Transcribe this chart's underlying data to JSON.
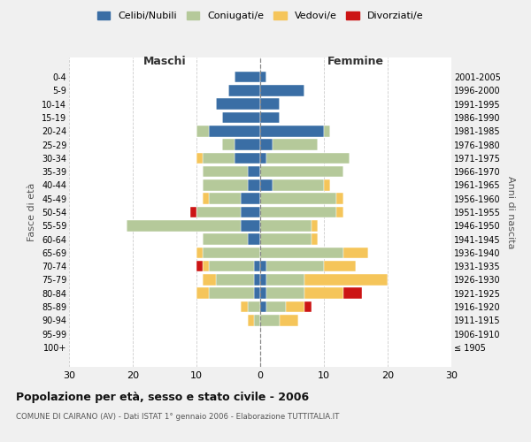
{
  "age_groups": [
    "100+",
    "95-99",
    "90-94",
    "85-89",
    "80-84",
    "75-79",
    "70-74",
    "65-69",
    "60-64",
    "55-59",
    "50-54",
    "45-49",
    "40-44",
    "35-39",
    "30-34",
    "25-29",
    "20-24",
    "15-19",
    "10-14",
    "5-9",
    "0-4"
  ],
  "birth_years": [
    "≤ 1905",
    "1906-1910",
    "1911-1915",
    "1916-1920",
    "1921-1925",
    "1926-1930",
    "1931-1935",
    "1936-1940",
    "1941-1945",
    "1946-1950",
    "1951-1955",
    "1956-1960",
    "1961-1965",
    "1966-1970",
    "1971-1975",
    "1976-1980",
    "1981-1985",
    "1986-1990",
    "1991-1995",
    "1996-2000",
    "2001-2005"
  ],
  "colors": {
    "celibi": "#3a6ea5",
    "coniugati": "#b5c99a",
    "vedovi": "#f5c55a",
    "divorziati": "#cc1414"
  },
  "maschi": {
    "celibi": [
      0,
      0,
      0,
      0,
      1,
      1,
      1,
      0,
      2,
      3,
      3,
      3,
      2,
      2,
      4,
      4,
      8,
      6,
      7,
      5,
      4
    ],
    "coniugati": [
      0,
      0,
      1,
      2,
      7,
      6,
      7,
      9,
      7,
      18,
      7,
      5,
      7,
      7,
      5,
      2,
      2,
      0,
      0,
      0,
      0
    ],
    "vedovi": [
      0,
      0,
      1,
      1,
      2,
      2,
      1,
      1,
      0,
      0,
      0,
      1,
      0,
      0,
      1,
      0,
      0,
      0,
      0,
      0,
      0
    ],
    "divorziati": [
      0,
      0,
      0,
      0,
      0,
      0,
      1,
      0,
      0,
      0,
      1,
      0,
      0,
      0,
      0,
      0,
      0,
      0,
      0,
      0,
      0
    ]
  },
  "femmine": {
    "celibi": [
      0,
      0,
      0,
      1,
      1,
      1,
      1,
      0,
      0,
      0,
      0,
      0,
      2,
      0,
      1,
      2,
      10,
      3,
      3,
      7,
      1
    ],
    "coniugati": [
      0,
      0,
      3,
      3,
      6,
      6,
      9,
      13,
      8,
      8,
      12,
      12,
      8,
      13,
      13,
      7,
      1,
      0,
      0,
      0,
      0
    ],
    "vedovi": [
      0,
      0,
      3,
      3,
      6,
      13,
      5,
      4,
      1,
      1,
      1,
      1,
      1,
      0,
      0,
      0,
      0,
      0,
      0,
      0,
      0
    ],
    "divorziati": [
      0,
      0,
      0,
      1,
      3,
      0,
      0,
      0,
      0,
      0,
      0,
      0,
      0,
      0,
      0,
      0,
      0,
      0,
      0,
      0,
      0
    ]
  },
  "title": "Popolazione per età, sesso e stato civile - 2006",
  "subtitle": "COMUNE DI CAIRANO (AV) - Dati ISTAT 1° gennaio 2006 - Elaborazione TUTTITALIA.IT",
  "xlabel_left": "Maschi",
  "xlabel_right": "Femmine",
  "ylabel_left": "Fasce di età",
  "ylabel_right": "Anni di nascita",
  "xlim": 30,
  "background_color": "#f0f0f0",
  "plot_bg": "#ffffff",
  "legend_labels": [
    "Celibi/Nubili",
    "Coniugati/e",
    "Vedovi/e",
    "Divorziati/e"
  ]
}
